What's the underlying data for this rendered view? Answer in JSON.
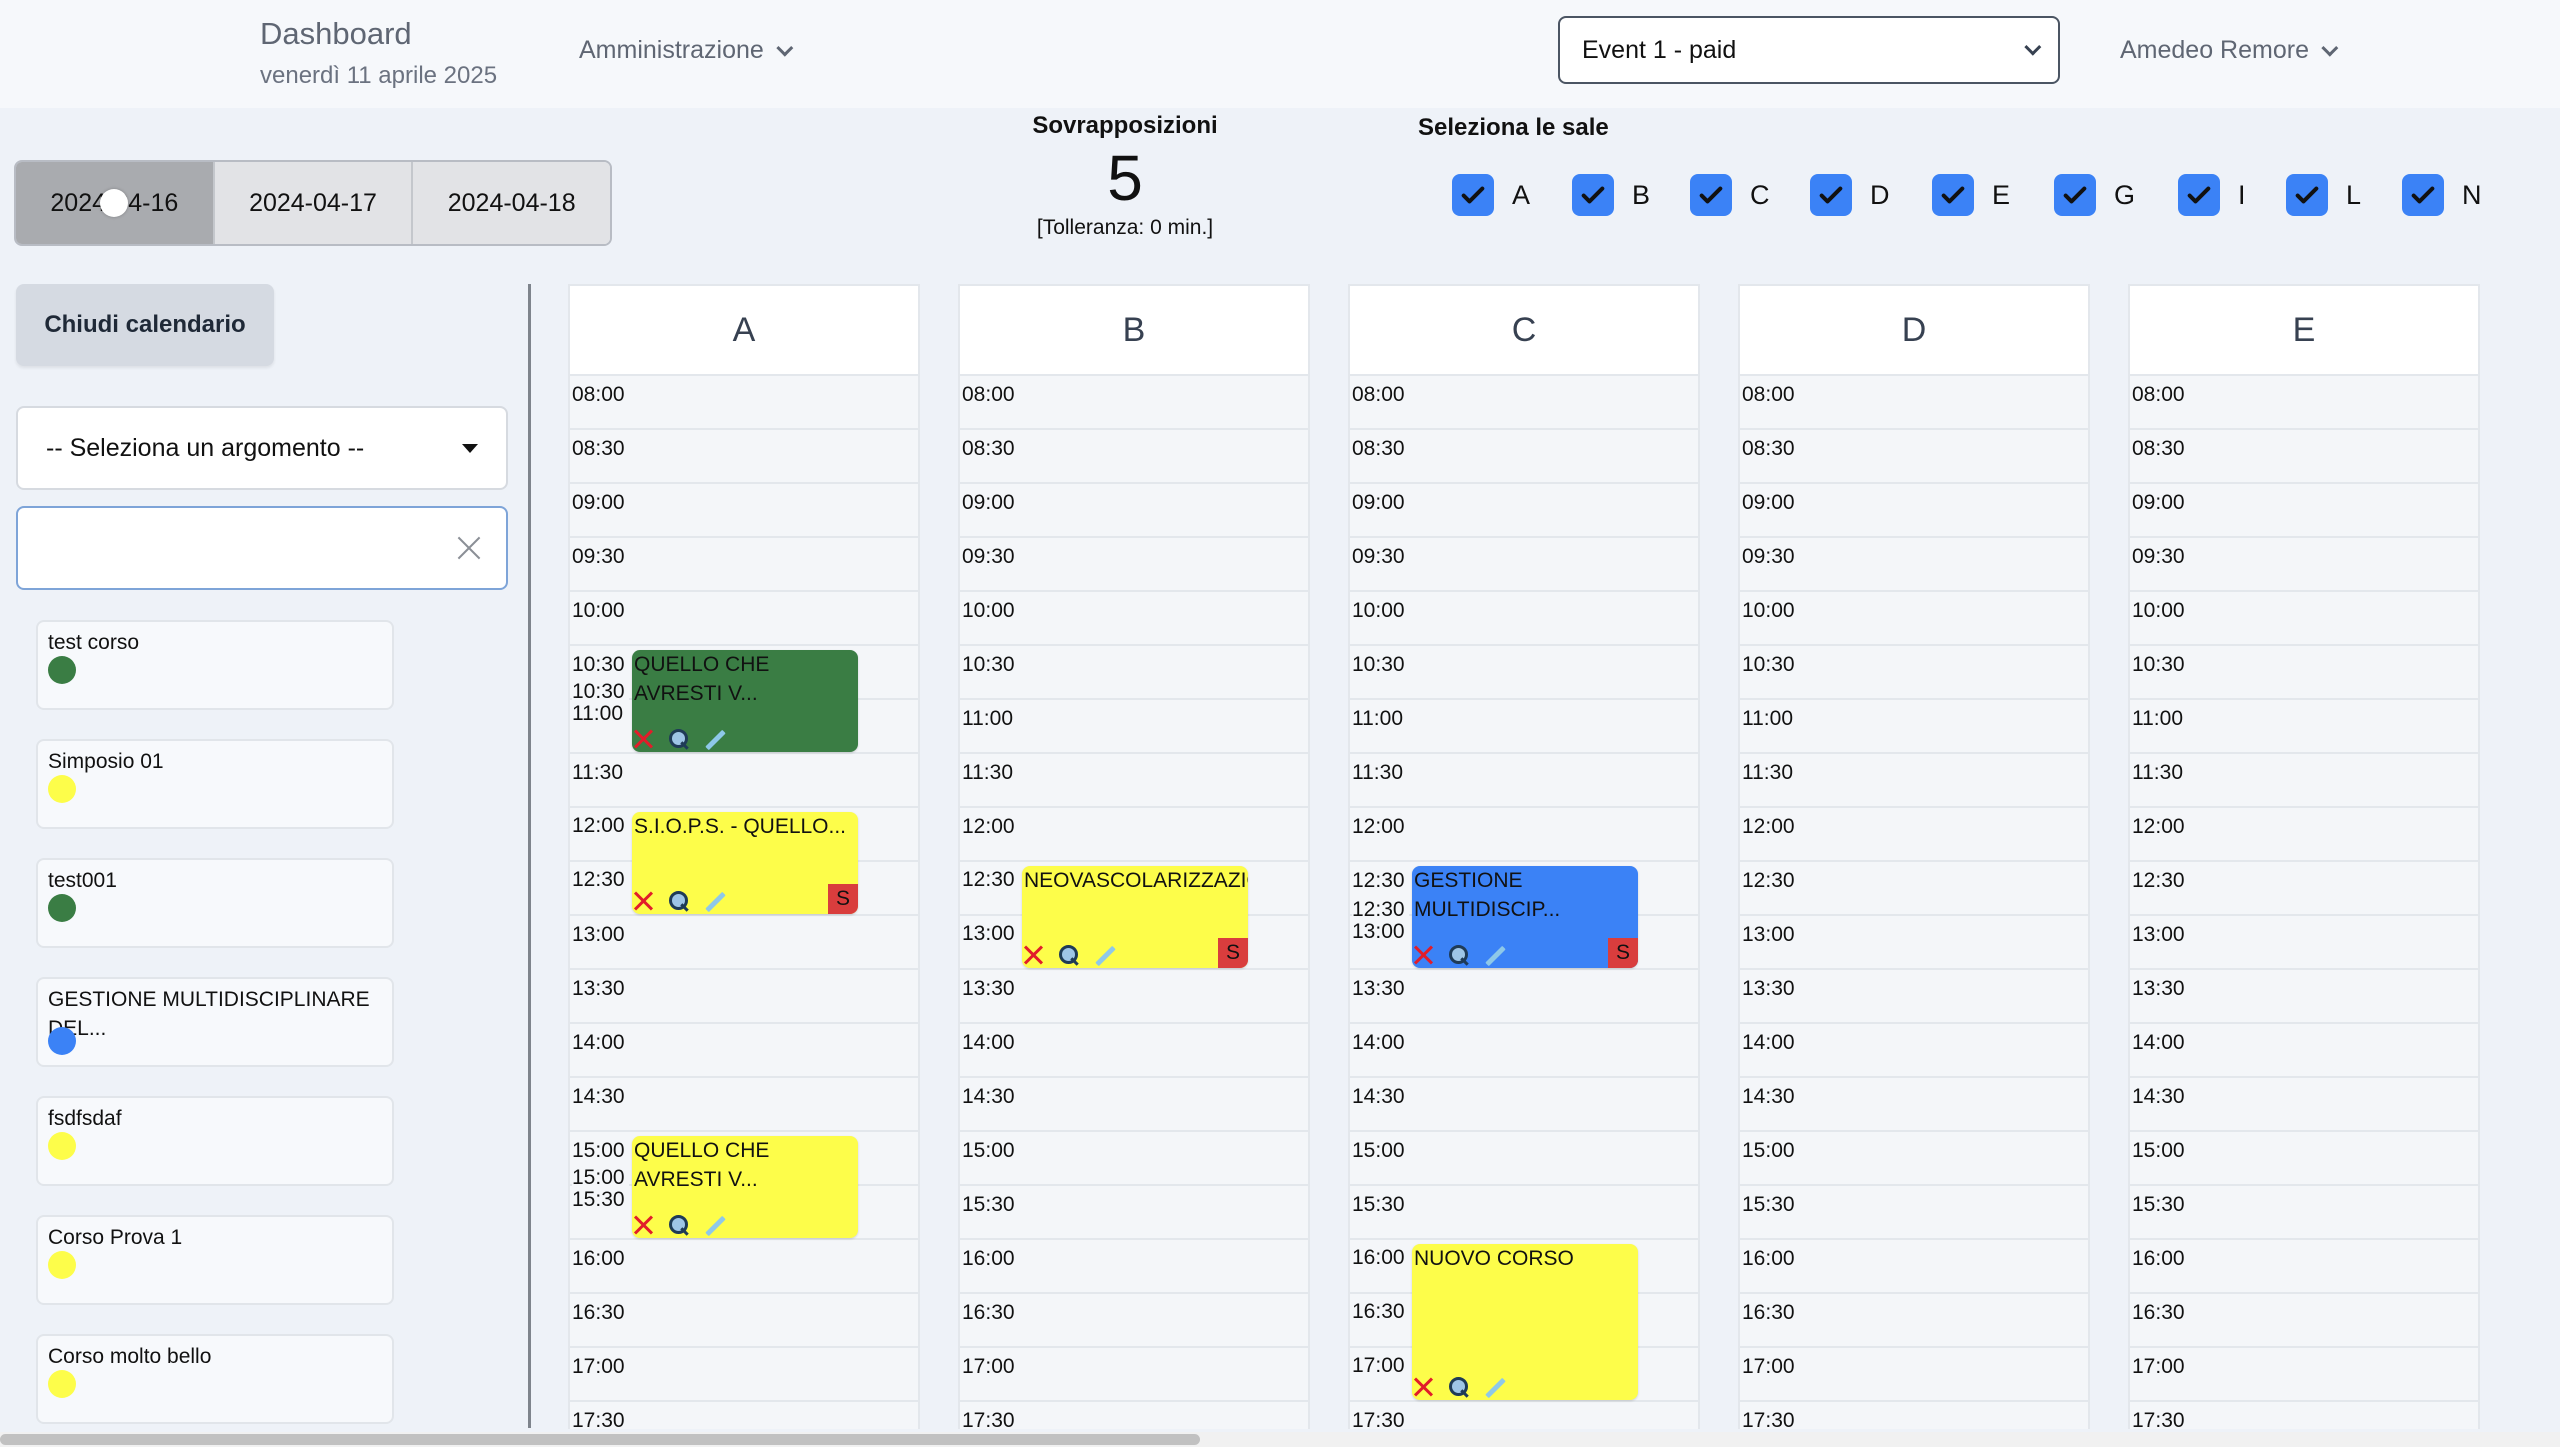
{
  "header": {
    "title": "Dashboard",
    "date": "venerdì 11 aprile 2025",
    "admin_menu": "Amministrazione",
    "event_select": "Event 1 - paid",
    "user_menu": "Amedeo Remore"
  },
  "date_tabs": [
    {
      "label": "2024-04-16",
      "active": true
    },
    {
      "label": "2024-04-17",
      "active": false
    },
    {
      "label": "2024-04-18",
      "active": false
    }
  ],
  "overlap": {
    "title": "Sovrapposizioni",
    "count": "5",
    "tolerance": "[Tolleranza: 0 min.]"
  },
  "room_selector": {
    "title": "Seleziona le sale",
    "rooms": [
      "A",
      "B",
      "C",
      "D",
      "E",
      "G",
      "I",
      "L",
      "N"
    ],
    "checked": true
  },
  "sidebar": {
    "close_calendar": "Chiudi calendario",
    "topic_placeholder": "-- Seleziona un argomento --",
    "search_value": "",
    "courses": [
      {
        "name": "test corso",
        "color": "#3a7d44"
      },
      {
        "name": "Simposio 01",
        "color": "#fdfd4a"
      },
      {
        "name": "test001",
        "color": "#3a7d44"
      },
      {
        "name": "GESTIONE MULTIDISCIPLINARE DEL...",
        "color": "#3b82f6"
      },
      {
        "name": "fsdfsdaf",
        "color": "#fdfd4a"
      },
      {
        "name": "Corso Prova 1",
        "color": "#fdfd4a"
      },
      {
        "name": "Corso molto bello",
        "color": "#fdfd4a"
      }
    ]
  },
  "calendar": {
    "columns": [
      "A",
      "B",
      "C",
      "D",
      "E"
    ],
    "times": [
      "08:00",
      "08:30",
      "09:00",
      "09:30",
      "10:00",
      "10:30",
      "11:00",
      "11:30",
      "12:00",
      "12:30",
      "13:00",
      "13:30",
      "14:00",
      "14:30",
      "15:00",
      "15:30",
      "16:00",
      "16:30",
      "17:00",
      "17:30"
    ],
    "events": [
      {
        "room": "A",
        "title": "QUELLO CHE AVRESTI V...",
        "color": "#3a7d44",
        "badge": ""
      },
      {
        "room": "A",
        "title": "S.I.O.P.S. - QUELLO...",
        "color": "#fdfd4a",
        "badge": "S"
      },
      {
        "room": "A",
        "title": "QUELLO CHE AVRESTI V...",
        "color": "#fdfd4a",
        "badge": ""
      },
      {
        "room": "B",
        "title": "NEOVASCOLARIZZAZIONI...",
        "color": "#fdfd4a",
        "badge": "S"
      },
      {
        "room": "C",
        "title": "GESTIONE MULTIDISCIP...",
        "color": "#3b82f6",
        "badge": "S"
      },
      {
        "room": "C",
        "title": "NUOVO CORSO",
        "color": "#fdfd4a",
        "badge": ""
      }
    ],
    "overlap_times": [
      {
        "room": "A",
        "labels": [
          "10:30",
          "11:00"
        ]
      },
      {
        "room": "A",
        "labels": [
          "12:00",
          "12:30"
        ]
      },
      {
        "room": "A",
        "labels": [
          "15:00",
          "15:30"
        ]
      },
      {
        "room": "B",
        "labels": [
          "12:30",
          "13:00"
        ]
      },
      {
        "room": "C",
        "labels": [
          "12:30",
          "13:00"
        ]
      },
      {
        "room": "C",
        "labels": [
          "16:00",
          "16:30",
          "17:00"
        ]
      }
    ]
  },
  "icons": {
    "delete": "close-x-icon",
    "view": "magnifier-icon",
    "edit": "pencil-icon",
    "check": "checkmark-icon"
  }
}
